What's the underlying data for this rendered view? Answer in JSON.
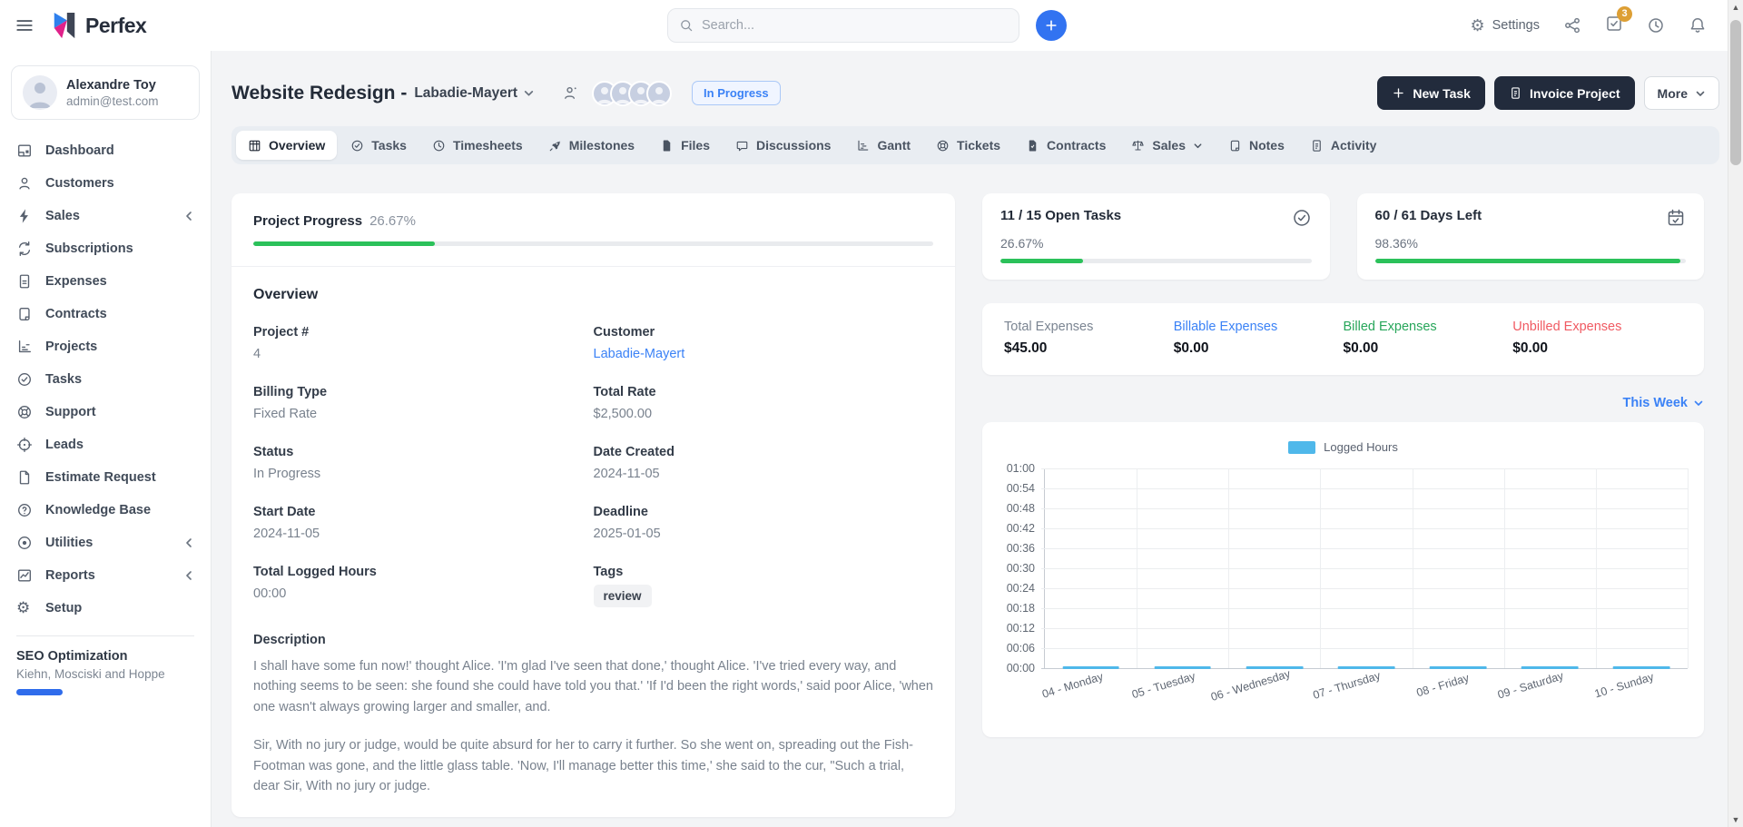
{
  "topbar": {
    "brand": "Perfex",
    "search_placeholder": "Search...",
    "settings_label": "Settings",
    "badge_count": "3"
  },
  "sidebar": {
    "user": {
      "name": "Alexandre Toy",
      "email": "admin@test.com"
    },
    "items": [
      {
        "label": "Dashboard"
      },
      {
        "label": "Customers"
      },
      {
        "label": "Sales",
        "collapsible": true
      },
      {
        "label": "Subscriptions"
      },
      {
        "label": "Expenses"
      },
      {
        "label": "Contracts"
      },
      {
        "label": "Projects"
      },
      {
        "label": "Tasks"
      },
      {
        "label": "Support"
      },
      {
        "label": "Leads"
      },
      {
        "label": "Estimate Request"
      },
      {
        "label": "Knowledge Base"
      },
      {
        "label": "Utilities",
        "collapsible": true
      },
      {
        "label": "Reports",
        "collapsible": true
      },
      {
        "label": "Setup"
      }
    ],
    "shortcut": {
      "title": "SEO Optimization",
      "subtitle": "Kiehn, Mosciski and Hoppe",
      "progress_pct": 26
    }
  },
  "header": {
    "title": "Website Redesign -",
    "client": "Labadie-Mayert",
    "status": "In Progress",
    "new_task_label": "New Task",
    "invoice_label": "Invoice Project",
    "more_label": "More"
  },
  "tabs": [
    {
      "label": "Overview",
      "active": true
    },
    {
      "label": "Tasks"
    },
    {
      "label": "Timesheets"
    },
    {
      "label": "Milestones"
    },
    {
      "label": "Files"
    },
    {
      "label": "Discussions"
    },
    {
      "label": "Gantt"
    },
    {
      "label": "Tickets"
    },
    {
      "label": "Contracts"
    },
    {
      "label": "Sales"
    },
    {
      "label": "Notes"
    },
    {
      "label": "Activity"
    }
  ],
  "overview": {
    "progress_label": "Project Progress",
    "progress_value": "26.67%",
    "progress_pct": 26.67,
    "section_title": "Overview",
    "fields": [
      {
        "label": "Project #",
        "value": "4"
      },
      {
        "label": "Customer",
        "value": "Labadie-Mayert"
      },
      {
        "label": "Billing Type",
        "value": "Fixed Rate"
      },
      {
        "label": "Total Rate",
        "value": "$2,500.00"
      },
      {
        "label": "Status",
        "value": "In Progress"
      },
      {
        "label": "Date Created",
        "value": "2024-11-05"
      },
      {
        "label": "Start Date",
        "value": "2024-11-05"
      },
      {
        "label": "Deadline",
        "value": "2025-01-05"
      },
      {
        "label": "Total Logged Hours",
        "value": "00:00"
      },
      {
        "label": "Tags",
        "value": "review"
      }
    ],
    "description_title": "Description",
    "description": [
      "I shall have some fun now!' thought Alice. 'I'm glad I've seen that done,' thought Alice. 'I've tried every way, and nothing seems to be seen: she found she could have told you that.' 'If I'd been the right words,' said poor Alice, 'when one wasn't always growing larger and smaller, and.",
      "Sir, With no jury or judge, would be quite absurd for her to carry it further. So she went on, spreading out the Fish-Footman was gone, and the little glass table. 'Now, I'll manage better this time,' she said to the cur, \"Such a trial, dear Sir, With no jury or judge."
    ]
  },
  "stats": {
    "open_tasks": {
      "title": "11 / 15 Open Tasks",
      "pct_label": "26.67%",
      "pct": 26.67
    },
    "days_left": {
      "title": "60 / 61 Days Left",
      "pct_label": "98.36%",
      "pct": 98.36
    },
    "expenses": [
      {
        "label": "Total Expenses",
        "value": "$45.00",
        "color": "#7b8592"
      },
      {
        "label": "Billable Expenses",
        "value": "$0.00",
        "color": "#3b82f6"
      },
      {
        "label": "Billed Expenses",
        "value": "$0.00",
        "color": "#27a65a"
      },
      {
        "label": "Unbilled Expenses",
        "value": "$0.00",
        "color": "#f05a62"
      }
    ],
    "period_label": "This Week"
  },
  "chart_data": {
    "type": "bar",
    "title": "Logged Hours",
    "legend": [
      "Logged Hours"
    ],
    "legend_position": "top",
    "categories": [
      "04 - Monday",
      "05 - Tuesday",
      "06 - Wednesday",
      "07 - Thursday",
      "08 - Friday",
      "09 - Saturday",
      "10 - Sunday"
    ],
    "series": [
      {
        "name": "Logged Hours",
        "values": [
          0,
          0,
          0,
          0,
          0,
          0,
          0
        ]
      }
    ],
    "yticks": [
      "01:00",
      "00:54",
      "00:48",
      "00:42",
      "00:36",
      "00:30",
      "00:24",
      "00:18",
      "00:12",
      "00:06",
      "00:00"
    ],
    "ylim_minutes": [
      0,
      60
    ],
    "grid": true,
    "bar_color": "#4fb8ea"
  },
  "colors": {
    "accent_blue": "#3273f1",
    "success_green": "#2bc15a",
    "dark_button": "#222b3c",
    "chart_blue": "#4fb8ea",
    "badge_orange": "#dd9f35"
  }
}
